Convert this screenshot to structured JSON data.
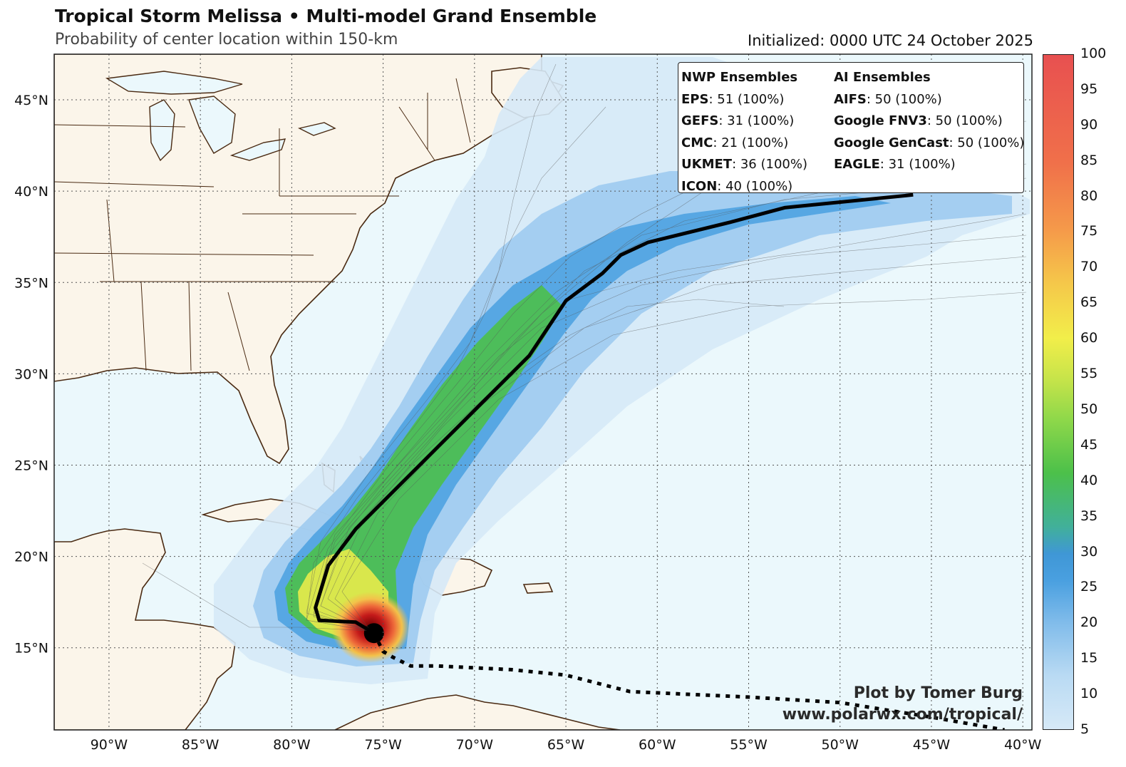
{
  "header": {
    "title": "Tropical Storm Melissa • Multi-model Grand Ensemble",
    "subtitle": "Probability of center location within 150-km",
    "initialized": "Initialized: 0000 UTC 24 October 2025"
  },
  "legend": {
    "nwp_title": "NWP Ensembles",
    "ai_title": "AI Ensembles",
    "nwp": [
      {
        "model": "EPS",
        "count": ": 51 (100%)"
      },
      {
        "model": "GEFS",
        "count": ": 31 (100%)"
      },
      {
        "model": "CMC",
        "count": ": 21 (100%)"
      },
      {
        "model": "UKMET",
        "count": ": 36 (100%)"
      },
      {
        "model": "ICON",
        "count": ": 40 (100%)"
      }
    ],
    "ai": [
      {
        "model": "AIFS",
        "count": ": 50 (100%)"
      },
      {
        "model": "Google FNV3",
        "count": ": 50 (100%)"
      },
      {
        "model": "Google GenCast",
        "count": ": 50 (100%)"
      },
      {
        "model": "EAGLE",
        "count": ": 31 (100%)"
      }
    ]
  },
  "credit": {
    "line1": "Plot by Tomer Burg",
    "line2": "www.polarwx.com/tropical/"
  },
  "map": {
    "lon_range": [
      -93,
      -39.5
    ],
    "lat_range": [
      10.5,
      47.5
    ],
    "lon_labels": [
      "90°W",
      "85°W",
      "80°W",
      "75°W",
      "70°W",
      "65°W",
      "60°W",
      "55°W",
      "50°W",
      "45°W",
      "40°W"
    ],
    "lat_labels": [
      "15°N",
      "20°N",
      "25°N",
      "30°N",
      "35°N",
      "40°N",
      "45°N"
    ],
    "colors": {
      "land": "#fbf5ea",
      "ocean": "#ebf8fc",
      "coast": "#4a2a12",
      "grid": "#555555"
    },
    "mean_track": [
      [
        -75.5,
        15.8
      ],
      [
        -76.5,
        16.4
      ],
      [
        -78.5,
        16.5
      ],
      [
        -78.7,
        17.2
      ],
      [
        -78.0,
        19.5
      ],
      [
        -76.5,
        21.5
      ],
      [
        -74.5,
        23.5
      ],
      [
        -72.0,
        26.0
      ],
      [
        -69.5,
        28.5
      ],
      [
        -67.0,
        31.0
      ],
      [
        -65.0,
        34.0
      ],
      [
        -63.0,
        35.5
      ],
      [
        -62.0,
        36.5
      ],
      [
        -60.5,
        37.2
      ],
      [
        -56.0,
        38.3
      ],
      [
        -53.0,
        39.1
      ],
      [
        -46.0,
        39.8
      ]
    ],
    "past_track": [
      [
        -75.5,
        15.8
      ],
      [
        -75.0,
        14.8
      ],
      [
        -74.5,
        14.5
      ],
      [
        -73.5,
        14.0
      ],
      [
        -72.0,
        14.0
      ],
      [
        -68.0,
        13.8
      ],
      [
        -65.0,
        13.5
      ],
      [
        -61.5,
        12.6
      ],
      [
        -55.0,
        12.3
      ],
      [
        -50.0,
        12.0
      ],
      [
        -45.0,
        11.2
      ],
      [
        -41.0,
        10.5
      ]
    ],
    "storm_center": [
      -75.5,
      15.8
    ]
  },
  "colorbar": {
    "min": 5,
    "max": 100,
    "labels": [
      "5",
      "10",
      "15",
      "20",
      "25",
      "30",
      "35",
      "40",
      "45",
      "50",
      "55",
      "60",
      "65",
      "70",
      "75",
      "80",
      "85",
      "90",
      "95",
      "100"
    ]
  }
}
